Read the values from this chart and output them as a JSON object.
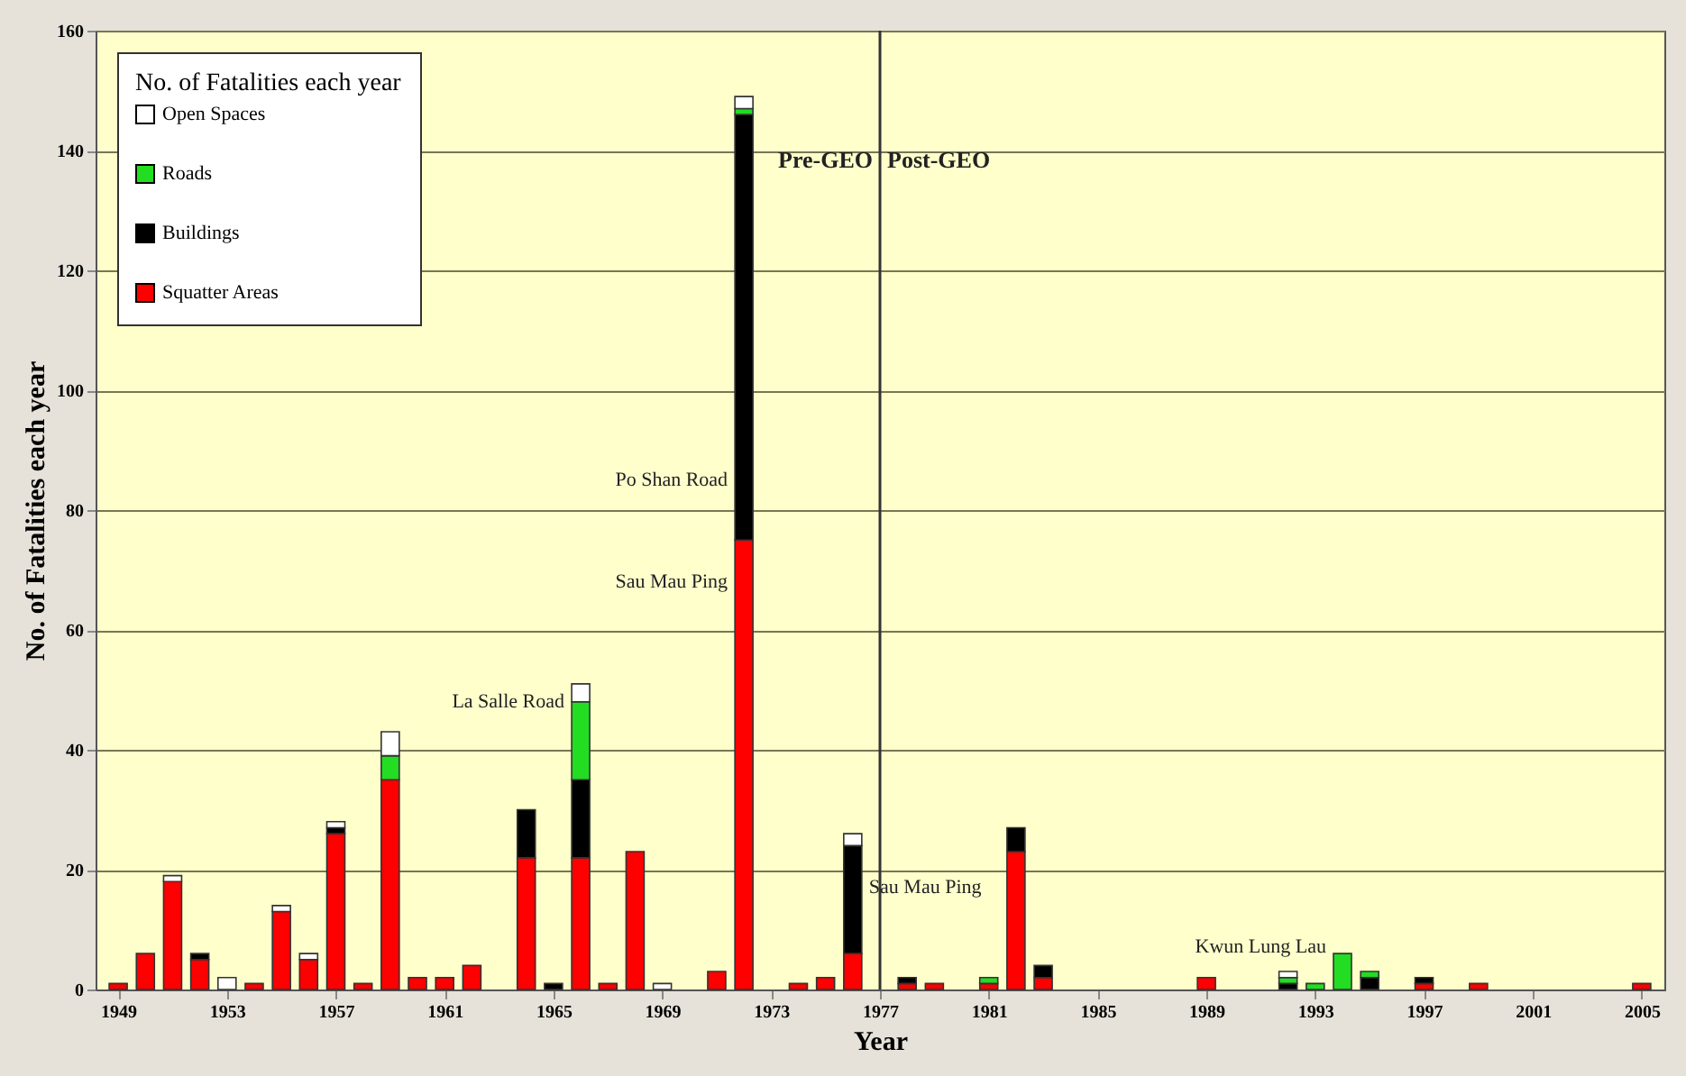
{
  "chart_data": {
    "type": "bar",
    "stacked": true,
    "xlabel": "Year",
    "ylabel": "No. of Fatalities each year",
    "legend_title": "No. of Fatalities each year",
    "legend": "top left",
    "grid": "y",
    "x": [
      1949,
      1950,
      1951,
      1952,
      1953,
      1954,
      1955,
      1956,
      1957,
      1958,
      1959,
      1960,
      1961,
      1962,
      1964,
      1965,
      1966,
      1967,
      1968,
      1969,
      1971,
      1972,
      1974,
      1975,
      1976,
      1978,
      1979,
      1981,
      1982,
      1983,
      1989,
      1992,
      1993,
      1994,
      1995,
      1997,
      1999,
      2005
    ],
    "series": [
      {
        "name": "Squatter Areas",
        "color": "#ff0000",
        "values": [
          1,
          6,
          18,
          5,
          null,
          1,
          13,
          5,
          26,
          1,
          35,
          2,
          2,
          4,
          22,
          null,
          22,
          1,
          23,
          null,
          3,
          75,
          1,
          2,
          6,
          1,
          1,
          1,
          23,
          2,
          2,
          null,
          null,
          null,
          null,
          1,
          1,
          1
        ]
      },
      {
        "name": "Buildings",
        "color": "#000000",
        "values": [
          null,
          null,
          null,
          1,
          null,
          null,
          null,
          null,
          1,
          null,
          null,
          null,
          null,
          null,
          8,
          1,
          13,
          null,
          null,
          null,
          null,
          71,
          null,
          null,
          18,
          1,
          null,
          null,
          4,
          2,
          null,
          1,
          null,
          null,
          2,
          1,
          null,
          null
        ]
      },
      {
        "name": "Roads",
        "color": "#22dd22",
        "values": [
          null,
          null,
          null,
          null,
          null,
          null,
          null,
          null,
          null,
          null,
          4,
          null,
          null,
          null,
          null,
          null,
          13,
          null,
          null,
          null,
          null,
          1,
          null,
          null,
          null,
          null,
          null,
          1,
          null,
          null,
          null,
          1,
          1,
          6,
          1,
          null,
          null,
          null
        ]
      },
      {
        "name": "Open Spaces",
        "color": "#ffffff",
        "values": [
          null,
          null,
          1,
          null,
          2,
          null,
          1,
          1,
          1,
          null,
          4,
          null,
          null,
          null,
          null,
          null,
          3,
          null,
          null,
          1,
          null,
          2,
          null,
          null,
          2,
          null,
          null,
          null,
          null,
          null,
          null,
          1,
          null,
          null,
          null,
          null,
          null,
          null
        ]
      }
    ],
    "xlim": [
      1948.5,
      2005.5
    ],
    "xticks": [
      1949,
      1953,
      1957,
      1961,
      1965,
      1969,
      1973,
      1977,
      1981,
      1985,
      1989,
      1993,
      1997,
      2001,
      2005
    ],
    "ylim": [
      0,
      160
    ],
    "yticks": [
      0,
      20,
      40,
      60,
      80,
      100,
      120,
      140,
      160
    ],
    "ref_lines": [
      {
        "axis": "x",
        "value": 1977,
        "color": "#333333"
      }
    ],
    "annotations": [
      {
        "text": "La Salle Road",
        "x": 1966,
        "y": 48
      },
      {
        "text": "Po Shan Road",
        "x": 1972,
        "y": 85
      },
      {
        "text": "Sau Mau Ping",
        "x": 1972,
        "y": 68
      },
      {
        "text": "Sau Mau Ping",
        "x": 1976,
        "y": 17
      },
      {
        "text": "Kwun Lung Lau",
        "x": 1994,
        "y": 7
      },
      "Pre-GEO",
      "Post-GEO"
    ]
  }
}
